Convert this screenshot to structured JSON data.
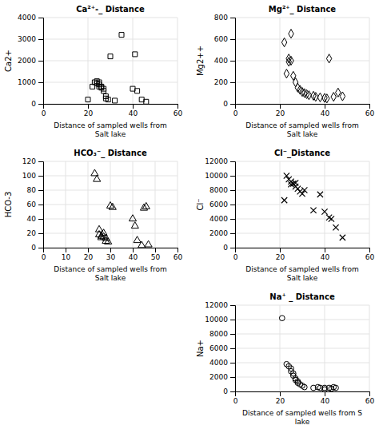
{
  "chart_data": [
    {
      "type": "scatter",
      "title": "Ca²⁺-_ Distance",
      "ylabel": "Ca2+",
      "xlabel": "Distance of sampled wells from\nSalt lake",
      "x": [
        20,
        22,
        23,
        24,
        24,
        25,
        25,
        25,
        26,
        26,
        27,
        27,
        28,
        28,
        29,
        30,
        32,
        35,
        40,
        41,
        42,
        44,
        46
      ],
      "values": [
        200,
        800,
        1000,
        950,
        1050,
        900,
        1000,
        800,
        800,
        750,
        700,
        600,
        350,
        250,
        200,
        2200,
        150,
        3200,
        700,
        2300,
        600,
        200,
        100
      ],
      "xlim": [
        0,
        60
      ],
      "xticks": [
        0,
        20,
        40,
        60
      ],
      "ylim": [
        0,
        4000
      ],
      "yticks": [
        0,
        1000,
        2000,
        3000,
        4000
      ],
      "marker": "square",
      "color": "black",
      "grid": true
    },
    {
      "type": "scatter",
      "title": "Mg²⁺_ Distance",
      "ylabel": "Mg2++",
      "xlabel": "Distance of sampled wells from\nSalt lake",
      "x": [
        22,
        23,
        24,
        24,
        25,
        25,
        26,
        27,
        28,
        29,
        30,
        31,
        32,
        33,
        35,
        36,
        38,
        40,
        41,
        42,
        44,
        46,
        48
      ],
      "values": [
        570,
        280,
        420,
        390,
        650,
        400,
        260,
        200,
        150,
        130,
        110,
        100,
        90,
        80,
        75,
        65,
        60,
        55,
        50,
        420,
        65,
        105,
        70
      ],
      "xlim": [
        0,
        60
      ],
      "xticks": [
        0,
        20,
        40,
        60
      ],
      "ylim": [
        0,
        800
      ],
      "yticks": [
        0,
        200,
        400,
        600,
        800
      ],
      "marker": "diamond",
      "color": "black",
      "grid": true
    },
    {
      "type": "scatter",
      "title": "HCO₃⁻_ Distance",
      "ylabel": "HCO-3",
      "xlabel": "Distance of sampled wells from\nSalt lake",
      "x": [
        23,
        24,
        25,
        25,
        26,
        26,
        27,
        27,
        28,
        28,
        29,
        30,
        31,
        40,
        41,
        42,
        44,
        45,
        46,
        47
      ],
      "values": [
        103,
        95,
        25,
        18,
        16,
        14,
        20,
        15,
        13,
        9,
        8,
        58,
        56,
        40,
        30,
        10,
        3,
        55,
        57,
        4
      ],
      "xlim": [
        0,
        60
      ],
      "xticks": [
        0,
        10,
        20,
        30,
        40,
        50,
        60
      ],
      "ylim": [
        0,
        120
      ],
      "yticks": [
        0,
        20,
        40,
        60,
        80,
        100,
        120
      ],
      "marker": "triangle",
      "color": "black",
      "grid": true
    },
    {
      "type": "scatter",
      "title": "Cl⁻_Distance",
      "ylabel": "Cl⁻",
      "xlabel": "Distance of sampled wells from\nSalt lake",
      "x": [
        22,
        23,
        24,
        25,
        25,
        26,
        27,
        27,
        28,
        29,
        30,
        31,
        35,
        38,
        40,
        42,
        43,
        45,
        48
      ],
      "values": [
        6600,
        10000,
        9500,
        8800,
        9200,
        8900,
        9000,
        8500,
        8200,
        7800,
        7500,
        8000,
        5200,
        7400,
        5000,
        4200,
        4000,
        2800,
        1400
      ],
      "xlim": [
        0,
        60
      ],
      "xticks": [
        0,
        20,
        40,
        60
      ],
      "ylim": [
        0,
        12000
      ],
      "yticks": [
        0,
        2000,
        4000,
        6000,
        8000,
        10000,
        12000
      ],
      "marker": "x",
      "color": "black",
      "grid": true
    },
    {
      "type": "scatter",
      "title": "Na⁺ _ Distance",
      "ylabel": "Na+",
      "xlabel": "Distance of sampled wells from S\nlake",
      "x": [
        21,
        23,
        24,
        25,
        25,
        26,
        26,
        27,
        27,
        28,
        28,
        29,
        30,
        31,
        35,
        37,
        38,
        40,
        40,
        42,
        43,
        44,
        45
      ],
      "values": [
        10200,
        3800,
        3500,
        3200,
        2800,
        2500,
        2200,
        1800,
        1600,
        1400,
        1200,
        1000,
        800,
        600,
        500,
        600,
        500,
        300,
        500,
        500,
        400,
        600,
        500
      ],
      "xlim": [
        0,
        60
      ],
      "xticks": [
        0,
        20,
        40,
        60
      ],
      "ylim": [
        0,
        12000
      ],
      "yticks": [
        0,
        2000,
        4000,
        6000,
        8000,
        10000,
        12000
      ],
      "marker": "circle",
      "color": "black",
      "grid": true
    }
  ]
}
